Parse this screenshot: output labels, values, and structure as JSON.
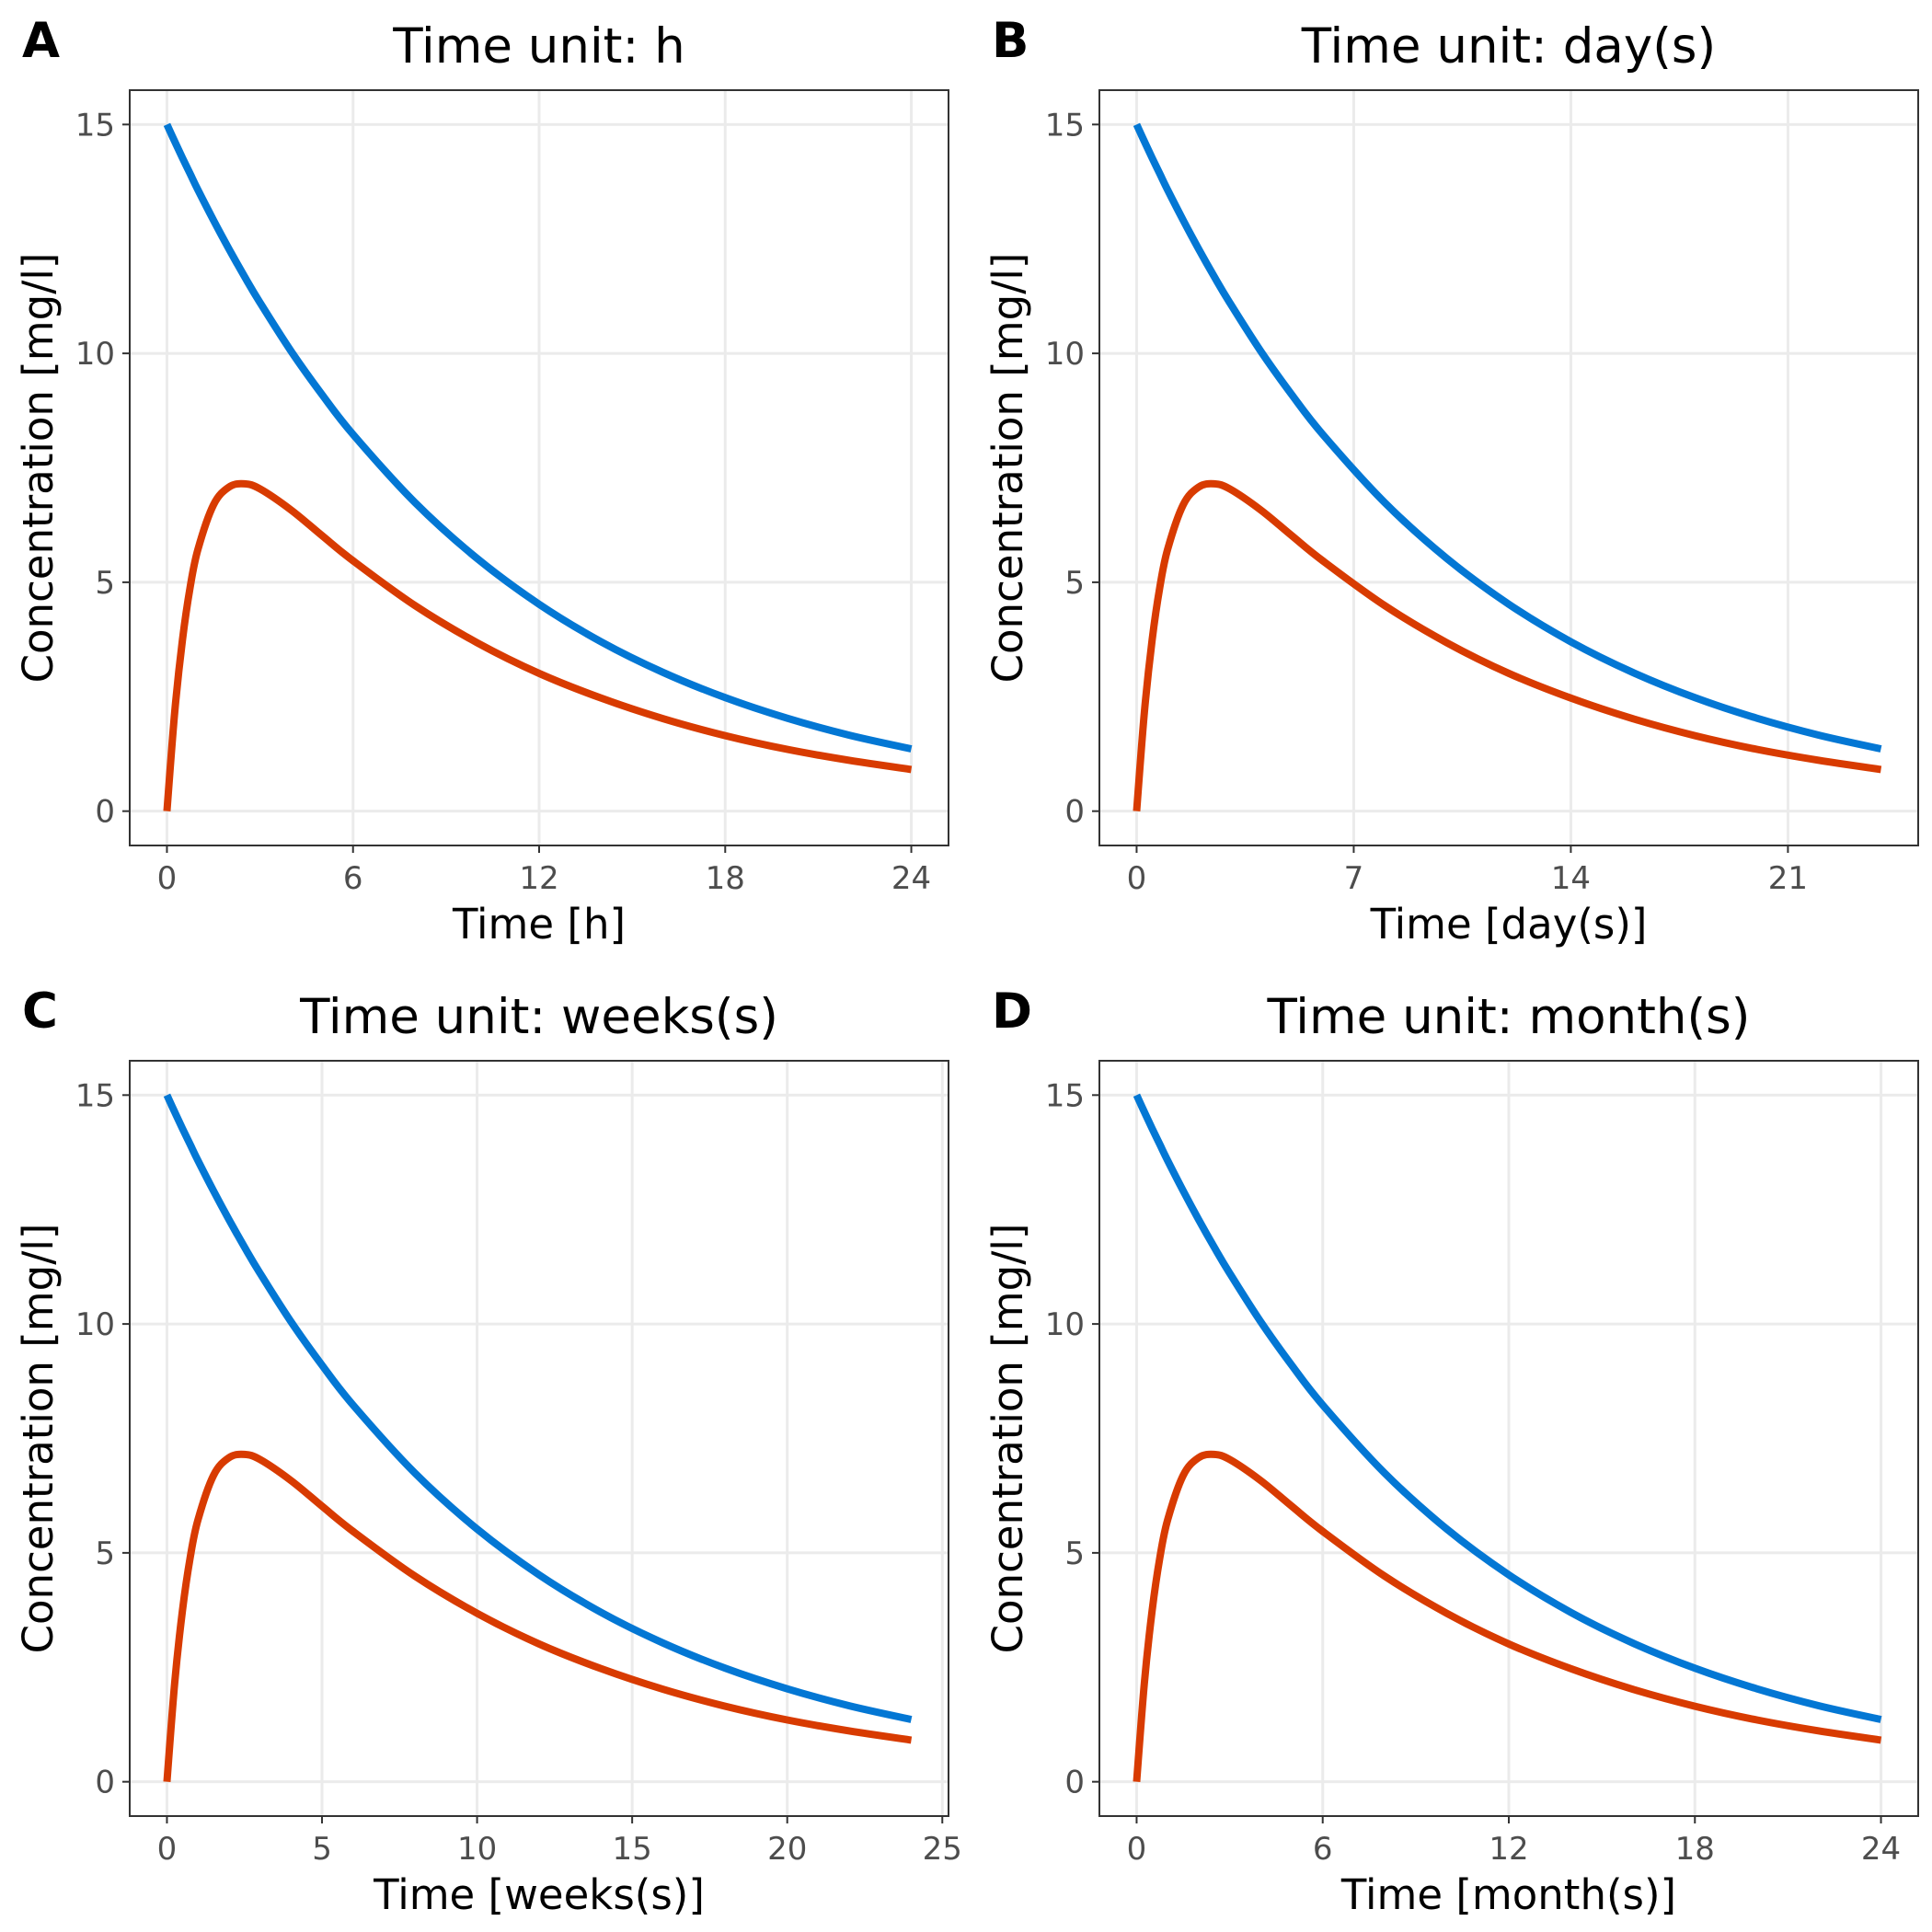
{
  "colors": {
    "blue": "#0377d4",
    "red": "#d83b01",
    "grid": "#ebebeb",
    "frame": "#333333"
  },
  "chart_data": [
    {
      "type": "line",
      "panel": "A",
      "title": "Time unit: h",
      "xlabel": "Time [h]",
      "ylabel": "Concentration [mg/l]",
      "xlim": [
        -1.2,
        25.2
      ],
      "ylim": [
        -0.75,
        15.75
      ],
      "xticks": [
        0,
        6,
        12,
        18,
        24
      ],
      "yticks": [
        0,
        5,
        10,
        15
      ],
      "grid": true,
      "x": [
        0,
        0.25,
        0.5,
        0.75,
        1,
        1.5,
        2,
        2.5,
        3,
        4,
        5,
        6,
        8,
        10,
        12,
        14,
        16,
        18,
        20,
        22,
        24
      ],
      "series": [
        {
          "color": "#0377d4",
          "values": [
            15,
            14.63,
            14.27,
            13.92,
            13.57,
            12.91,
            12.28,
            11.68,
            11.11,
            10.05,
            9.1,
            8.23,
            6.74,
            5.52,
            4.52,
            3.7,
            3.03,
            2.48,
            2.03,
            1.66,
            1.36
          ]
        },
        {
          "color": "#d83b01",
          "values": [
            0,
            2.16,
            3.74,
            4.9,
            5.72,
            6.69,
            7.08,
            7.15,
            7.04,
            6.58,
            6.02,
            5.47,
            4.49,
            3.68,
            3.01,
            2.47,
            2.02,
            1.65,
            1.35,
            1.11,
            0.91
          ]
        }
      ]
    },
    {
      "type": "line",
      "panel": "B",
      "title": "Time unit: day(s)",
      "xlabel": "Time [day(s)]",
      "ylabel": "Concentration [mg/l]",
      "xlim": [
        -1.2,
        25.2
      ],
      "ylim": [
        -0.75,
        15.75
      ],
      "xticks": [
        0,
        7,
        14,
        21
      ],
      "yticks": [
        0,
        5,
        10,
        15
      ],
      "grid": true,
      "x": [
        0,
        0.25,
        0.5,
        0.75,
        1,
        1.5,
        2,
        2.5,
        3,
        4,
        5,
        6,
        8,
        10,
        12,
        14,
        16,
        18,
        20,
        22,
        24
      ],
      "series": [
        {
          "color": "#0377d4",
          "values": [
            15,
            14.63,
            14.27,
            13.92,
            13.57,
            12.91,
            12.28,
            11.68,
            11.11,
            10.05,
            9.1,
            8.23,
            6.74,
            5.52,
            4.52,
            3.7,
            3.03,
            2.48,
            2.03,
            1.66,
            1.36
          ]
        },
        {
          "color": "#d83b01",
          "values": [
            0,
            2.16,
            3.74,
            4.9,
            5.72,
            6.69,
            7.08,
            7.15,
            7.04,
            6.58,
            6.02,
            5.47,
            4.49,
            3.68,
            3.01,
            2.47,
            2.02,
            1.65,
            1.35,
            1.11,
            0.91
          ]
        }
      ]
    },
    {
      "type": "line",
      "panel": "C",
      "title": "Time unit: weeks(s)",
      "xlabel": "Time [weeks(s)]",
      "ylabel": "Concentration [mg/l]",
      "xlim": [
        -1.2,
        25.2
      ],
      "ylim": [
        -0.75,
        15.75
      ],
      "xticks": [
        0,
        5,
        10,
        15,
        20,
        25
      ],
      "yticks": [
        0,
        5,
        10,
        15
      ],
      "grid": true,
      "x": [
        0,
        0.25,
        0.5,
        0.75,
        1,
        1.5,
        2,
        2.5,
        3,
        4,
        5,
        6,
        8,
        10,
        12,
        14,
        16,
        18,
        20,
        22,
        24
      ],
      "series": [
        {
          "color": "#0377d4",
          "values": [
            15,
            14.63,
            14.27,
            13.92,
            13.57,
            12.91,
            12.28,
            11.68,
            11.11,
            10.05,
            9.1,
            8.23,
            6.74,
            5.52,
            4.52,
            3.7,
            3.03,
            2.48,
            2.03,
            1.66,
            1.36
          ]
        },
        {
          "color": "#d83b01",
          "values": [
            0,
            2.16,
            3.74,
            4.9,
            5.72,
            6.69,
            7.08,
            7.15,
            7.04,
            6.58,
            6.02,
            5.47,
            4.49,
            3.68,
            3.01,
            2.47,
            2.02,
            1.65,
            1.35,
            1.11,
            0.91
          ]
        }
      ]
    },
    {
      "type": "line",
      "panel": "D",
      "title": "Time unit: month(s)",
      "xlabel": "Time [month(s)]",
      "ylabel": "Concentration [mg/l]",
      "xlim": [
        -1.2,
        25.2
      ],
      "ylim": [
        -0.75,
        15.75
      ],
      "xticks": [
        0,
        6,
        12,
        18,
        24
      ],
      "yticks": [
        0,
        5,
        10,
        15
      ],
      "grid": true,
      "x": [
        0,
        0.25,
        0.5,
        0.75,
        1,
        1.5,
        2,
        2.5,
        3,
        4,
        5,
        6,
        8,
        10,
        12,
        14,
        16,
        18,
        20,
        22,
        24
      ],
      "series": [
        {
          "color": "#0377d4",
          "values": [
            15,
            14.63,
            14.27,
            13.92,
            13.57,
            12.91,
            12.28,
            11.68,
            11.11,
            10.05,
            9.1,
            8.23,
            6.74,
            5.52,
            4.52,
            3.7,
            3.03,
            2.48,
            2.03,
            1.66,
            1.36
          ]
        },
        {
          "color": "#d83b01",
          "values": [
            0,
            2.16,
            3.74,
            4.9,
            5.72,
            6.69,
            7.08,
            7.15,
            7.04,
            6.58,
            6.02,
            5.47,
            4.49,
            3.68,
            3.01,
            2.47,
            2.02,
            1.65,
            1.35,
            1.11,
            0.91
          ]
        }
      ]
    }
  ]
}
